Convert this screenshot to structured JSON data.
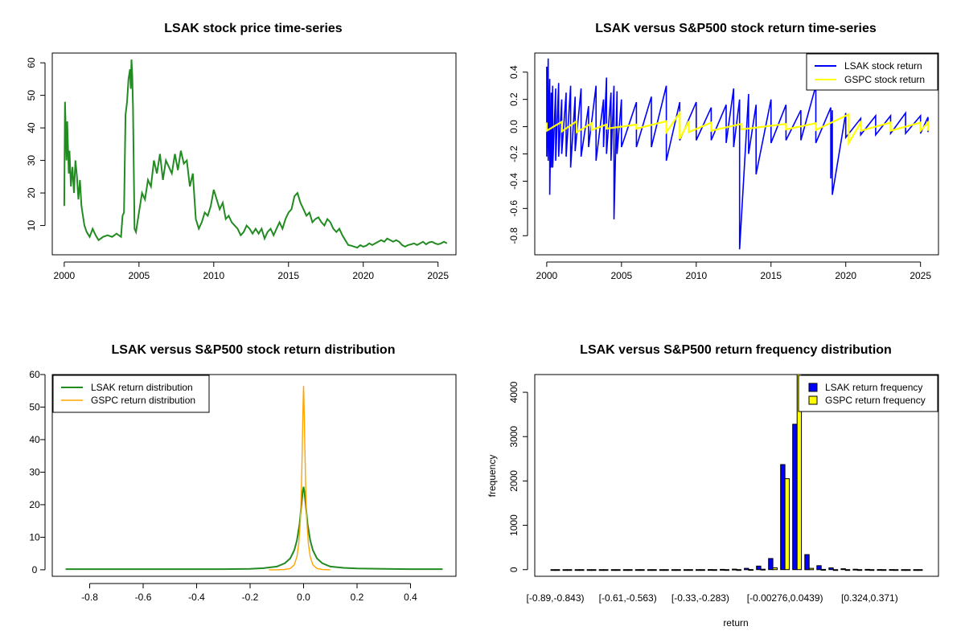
{
  "colors": {
    "lsak_price": "#228B22",
    "lsak_return": "#0000FF",
    "gspc_return_line": "#FFFF00",
    "lsak_density": "#228B22",
    "gspc_density": "#FFA500",
    "lsak_bar": "#0000FF",
    "gspc_bar": "#FFFF00",
    "axis": "#000000",
    "background": "#FFFFFF"
  },
  "chart_data": [
    {
      "id": "price",
      "type": "line",
      "title": "LSAK stock price time-series",
      "xlabel": "",
      "ylabel": "",
      "xlim": [
        1999.2,
        2026.2
      ],
      "ylim": [
        1.0,
        63.0
      ],
      "x_ticks": [
        2000,
        2005,
        2010,
        2015,
        2020,
        2025
      ],
      "x_tick_labels": [
        "2000",
        "2005",
        "2010",
        "2015",
        "2020",
        "2025"
      ],
      "y_ticks": [
        10,
        20,
        30,
        40,
        50,
        60
      ],
      "y_tick_labels": [
        "10",
        "20",
        "30",
        "40",
        "50",
        "60"
      ],
      "series": [
        {
          "name": "LSAK",
          "x": [
            2000.0,
            2000.05,
            2000.1,
            2000.15,
            2000.2,
            2000.3,
            2000.35,
            2000.45,
            2000.55,
            2000.65,
            2000.75,
            2000.85,
            2000.95,
            2001.05,
            2001.15,
            2001.25,
            2001.35,
            2001.5,
            2001.7,
            2001.9,
            2002.1,
            2002.3,
            2002.6,
            2002.9,
            2003.2,
            2003.5,
            2003.8,
            2003.9,
            2004.0,
            2004.1,
            2004.2,
            2004.3,
            2004.4,
            2004.45,
            2004.5,
            2004.55,
            2004.6,
            2004.7,
            2004.8,
            2005.0,
            2005.2,
            2005.4,
            2005.6,
            2005.8,
            2006.0,
            2006.2,
            2006.4,
            2006.6,
            2006.8,
            2007.0,
            2007.2,
            2007.4,
            2007.6,
            2007.8,
            2008.0,
            2008.2,
            2008.4,
            2008.6,
            2008.8,
            2009.0,
            2009.2,
            2009.4,
            2009.6,
            2009.8,
            2010.0,
            2010.2,
            2010.4,
            2010.6,
            2010.8,
            2011.0,
            2011.2,
            2011.4,
            2011.6,
            2011.8,
            2012.0,
            2012.2,
            2012.4,
            2012.6,
            2012.8,
            2013.0,
            2013.2,
            2013.4,
            2013.6,
            2013.8,
            2014.0,
            2014.2,
            2014.4,
            2014.6,
            2014.8,
            2015.0,
            2015.2,
            2015.4,
            2015.6,
            2015.8,
            2016.0,
            2016.2,
            2016.4,
            2016.6,
            2016.8,
            2017.0,
            2017.2,
            2017.4,
            2017.6,
            2017.8,
            2018.0,
            2018.2,
            2018.4,
            2018.6,
            2018.8,
            2019.0,
            2019.2,
            2019.4,
            2019.6,
            2019.8,
            2020.0,
            2020.2,
            2020.4,
            2020.6,
            2020.8,
            2021.0,
            2021.2,
            2021.4,
            2021.6,
            2021.8,
            2022.0,
            2022.2,
            2022.4,
            2022.6,
            2022.8,
            2023.0,
            2023.2,
            2023.4,
            2023.6,
            2023.8,
            2024.0,
            2024.2,
            2024.4,
            2024.6,
            2024.8,
            2025.0,
            2025.2,
            2025.4,
            2025.6
          ],
          "values": [
            16.0,
            48.0,
            40.0,
            30.0,
            42.0,
            26.0,
            33.0,
            22.0,
            28.0,
            20.0,
            30.0,
            25.0,
            18.0,
            24.0,
            16.0,
            13.0,
            10.0,
            8.0,
            6.5,
            9.0,
            7.0,
            5.5,
            6.5,
            7.0,
            6.5,
            7.5,
            6.5,
            13.0,
            14.0,
            44.0,
            48.0,
            55.0,
            58.0,
            52.0,
            61.0,
            56.0,
            46.0,
            9.0,
            8.0,
            14.0,
            20.0,
            18.0,
            24.0,
            22.0,
            30.0,
            26.0,
            32.0,
            24.0,
            30.0,
            28.0,
            26.0,
            32.0,
            27.0,
            33.0,
            29.0,
            30.0,
            22.0,
            26.0,
            12.0,
            9.0,
            11.0,
            14.0,
            13.0,
            16.0,
            21.0,
            18.0,
            15.0,
            17.0,
            12.0,
            13.0,
            11.0,
            10.0,
            9.0,
            7.0,
            8.0,
            10.0,
            9.0,
            7.5,
            9.0,
            7.5,
            9.0,
            6.0,
            8.0,
            9.0,
            7.0,
            9.0,
            11.0,
            9.0,
            12.0,
            14.0,
            15.0,
            19.0,
            20.0,
            17.0,
            15.0,
            13.0,
            14.0,
            11.0,
            12.0,
            12.5,
            11.0,
            10.0,
            12.0,
            11.0,
            9.0,
            8.0,
            9.0,
            7.0,
            5.5,
            4.0,
            3.8,
            3.5,
            3.2,
            4.0,
            3.5,
            3.8,
            4.5,
            4.0,
            4.5,
            5.0,
            5.5,
            5.0,
            6.0,
            5.5,
            5.0,
            5.5,
            5.0,
            4.0,
            3.5,
            4.0,
            4.2,
            4.5,
            4.0,
            4.5,
            5.0,
            4.2,
            4.8,
            5.0,
            4.5,
            4.2,
            4.5,
            5.0,
            4.5
          ],
          "color": "#228B22"
        }
      ]
    },
    {
      "id": "returns",
      "type": "line",
      "title": "LSAK versus S&P500 stock return time-series",
      "xlabel": "",
      "ylabel": "",
      "xlim": [
        1999.2,
        2026.2
      ],
      "ylim": [
        -0.94,
        0.54
      ],
      "x_ticks": [
        2000,
        2005,
        2010,
        2015,
        2020,
        2025
      ],
      "x_tick_labels": [
        "2000",
        "2005",
        "2010",
        "2015",
        "2020",
        "2025"
      ],
      "y_ticks": [
        -0.8,
        -0.6,
        -0.4,
        -0.2,
        0.0,
        0.2,
        0.4
      ],
      "y_tick_labels": [
        "-0.8",
        "-0.6",
        "-0.4",
        "-0.2",
        "0.0",
        "0.2",
        "0.4"
      ],
      "legend": {
        "position": "top-right",
        "entries": [
          {
            "label": "LSAK stock return",
            "color": "#0000FF"
          },
          {
            "label": "GSPC stock return",
            "color": "#FFFF00"
          }
        ]
      },
      "series": [
        {
          "name": "LSAK stock return",
          "color": "#0000FF",
          "x": [
            2000.0,
            2000.1,
            2000.2,
            2000.3,
            2000.4,
            2000.6,
            2000.8,
            2001.0,
            2001.3,
            2001.6,
            2001.9,
            2002.3,
            2002.8,
            2003.3,
            2003.8,
            2004.0,
            2004.3,
            2004.5,
            2004.7,
            2005.0,
            2006.0,
            2007.0,
            2008.0,
            2008.9,
            2010.0,
            2011.0,
            2012.0,
            2012.5,
            2012.9,
            2013.5,
            2014.0,
            2015.0,
            2016.0,
            2017.0,
            2018.0,
            2019.0,
            2019.1,
            2020.0,
            2021.0,
            2022.0,
            2023.0,
            2024.0,
            2025.0,
            2025.5
          ],
          "upper": [
            0.44,
            0.5,
            0.35,
            0.25,
            0.3,
            0.28,
            0.32,
            0.2,
            0.25,
            0.3,
            0.22,
            0.28,
            0.15,
            0.3,
            0.2,
            0.36,
            0.25,
            0.3,
            0.26,
            0.2,
            0.18,
            0.22,
            0.3,
            0.18,
            0.18,
            0.14,
            0.16,
            0.28,
            0.2,
            0.24,
            0.16,
            0.2,
            0.16,
            0.12,
            0.3,
            0.14,
            0.12,
            0.1,
            0.06,
            0.08,
            0.08,
            0.1,
            0.08,
            0.07
          ],
          "lower": [
            -0.22,
            -0.25,
            -0.5,
            -0.3,
            -0.3,
            -0.25,
            -0.22,
            -0.2,
            -0.22,
            -0.3,
            -0.18,
            -0.22,
            -0.15,
            -0.25,
            -0.15,
            -0.2,
            -0.25,
            -0.68,
            -0.2,
            -0.15,
            -0.15,
            -0.15,
            -0.25,
            -0.1,
            -0.1,
            -0.1,
            -0.12,
            -0.15,
            -0.9,
            -0.2,
            -0.35,
            -0.12,
            -0.1,
            -0.1,
            -0.12,
            -0.38,
            -0.5,
            -0.08,
            -0.06,
            -0.06,
            -0.05,
            -0.05,
            -0.05,
            -0.04
          ]
        },
        {
          "name": "GSPC stock return",
          "color": "#FFFF00",
          "x": [
            2000.0,
            2001.0,
            2002.0,
            2003.0,
            2004.0,
            2006.0,
            2008.0,
            2008.9,
            2009.5,
            2011.0,
            2013.0,
            2016.0,
            2018.0,
            2020.2,
            2021.0,
            2023.0,
            2025.0,
            2025.5
          ],
          "upper": [
            0.03,
            0.035,
            0.04,
            0.025,
            0.015,
            0.015,
            0.04,
            0.1,
            0.04,
            0.03,
            0.02,
            0.02,
            0.025,
            0.09,
            0.03,
            0.03,
            0.03,
            0.03
          ],
          "lower": [
            -0.03,
            -0.035,
            -0.04,
            -0.025,
            -0.015,
            -0.015,
            -0.04,
            -0.09,
            -0.04,
            -0.03,
            -0.02,
            -0.02,
            -0.025,
            -0.12,
            -0.03,
            -0.03,
            -0.03,
            -0.03
          ]
        }
      ]
    },
    {
      "id": "density",
      "type": "line",
      "title": "LSAK versus S&P500 stock return distribution",
      "xlabel": "",
      "ylabel": "",
      "xlim": [
        -0.94,
        0.57
      ],
      "ylim": [
        -2.0,
        60.0
      ],
      "x_ticks": [
        -0.8,
        -0.6,
        -0.4,
        -0.2,
        0.0,
        0.2,
        0.4
      ],
      "x_tick_labels": [
        "-0.8",
        "-0.6",
        "-0.4",
        "-0.2",
        "0.0",
        "0.2",
        "0.4"
      ],
      "y_ticks": [
        0,
        10,
        20,
        30,
        40,
        50,
        60
      ],
      "y_tick_labels": [
        "0",
        "10",
        "20",
        "30",
        "40",
        "50",
        "60"
      ],
      "legend": {
        "position": "top-left",
        "entries": [
          {
            "label": "LSAK return distribution",
            "color": "#228B22"
          },
          {
            "label": "GSPC return distribution",
            "color": "#FFA500"
          }
        ]
      },
      "series": [
        {
          "name": "LSAK return distribution",
          "color": "#228B22",
          "x": [
            -0.89,
            -0.7,
            -0.5,
            -0.3,
            -0.2,
            -0.15,
            -0.1,
            -0.07,
            -0.05,
            -0.035,
            -0.025,
            -0.015,
            -0.008,
            -0.003,
            0.0,
            0.003,
            0.008,
            0.015,
            0.025,
            0.035,
            0.05,
            0.07,
            0.1,
            0.15,
            0.2,
            0.3,
            0.4,
            0.52
          ],
          "values": [
            0.2,
            0.2,
            0.2,
            0.2,
            0.3,
            0.5,
            1.0,
            2.0,
            3.5,
            6.0,
            9.0,
            14.0,
            20.0,
            24.0,
            25.5,
            24.0,
            20.0,
            14.0,
            9.0,
            6.0,
            3.5,
            2.0,
            1.0,
            0.6,
            0.4,
            0.3,
            0.2,
            0.2
          ]
        },
        {
          "name": "GSPC return distribution",
          "color": "#FFA500",
          "x": [
            -0.13,
            -0.1,
            -0.07,
            -0.05,
            -0.035,
            -0.025,
            -0.018,
            -0.012,
            -0.008,
            -0.005,
            -0.003,
            -0.001,
            0.0,
            0.001,
            0.003,
            0.005,
            0.008,
            0.012,
            0.018,
            0.025,
            0.035,
            0.05,
            0.07,
            0.1
          ],
          "values": [
            0.0,
            0.0,
            0.1,
            0.4,
            1.5,
            4.0,
            8.0,
            15.0,
            25.0,
            36.0,
            46.0,
            54.0,
            56.5,
            54.0,
            46.0,
            36.0,
            25.0,
            15.0,
            8.0,
            4.0,
            1.5,
            0.4,
            0.1,
            0.0
          ]
        }
      ]
    },
    {
      "id": "histogram",
      "type": "bar",
      "title": "LSAK versus S&P500 return frequency distribution",
      "xlabel": "return",
      "ylabel": "frequency",
      "ylim": [
        -150,
        4400
      ],
      "y_ticks": [
        0,
        1000,
        2000,
        3000,
        4000
      ],
      "y_tick_labels": [
        "0",
        "1000",
        "2000",
        "3000",
        "4000"
      ],
      "x_tick_labels": [
        "[-0.89,-0.843)",
        "[-0.61,-0.563)",
        "[-0.33,-0.283)",
        "[-0.00276,0.0439)",
        "[0.324,0.371)"
      ],
      "x_tick_bins": [
        0,
        6,
        12,
        19,
        26
      ],
      "legend": {
        "position": "top-right",
        "entries": [
          {
            "label": "LSAK return frequency",
            "color": "#0000FF"
          },
          {
            "label": "GSPC return frequency",
            "color": "#FFFF00"
          }
        ]
      },
      "bin_count": 31,
      "series": [
        {
          "name": "LSAK return frequency",
          "color": "#0000FF",
          "values": [
            1,
            0,
            0,
            0,
            0,
            0,
            0,
            1,
            0,
            0,
            0,
            1,
            1,
            3,
            6,
            12,
            30,
            80,
            250,
            2370,
            3280,
            340,
            90,
            40,
            20,
            10,
            5,
            3,
            2,
            1,
            1
          ]
        },
        {
          "name": "GSPC return frequency",
          "color": "#FFFF00",
          "values": [
            0,
            0,
            0,
            0,
            0,
            0,
            0,
            0,
            0,
            0,
            0,
            0,
            0,
            0,
            0,
            0,
            2,
            10,
            40,
            2050,
            4500,
            30,
            5,
            0,
            0,
            0,
            0,
            0,
            0,
            0,
            0
          ]
        }
      ]
    }
  ]
}
